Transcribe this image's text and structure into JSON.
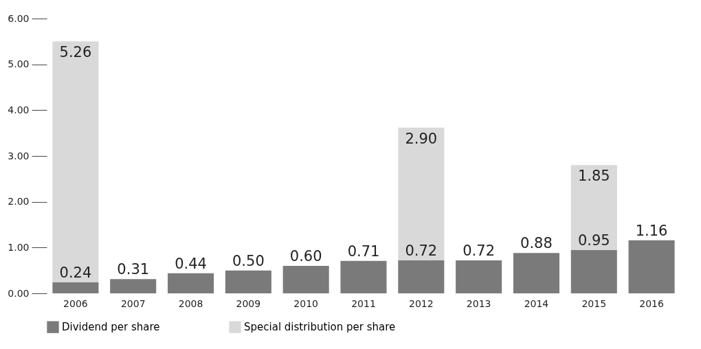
{
  "chart_data": {
    "type": "bar",
    "stacked": true,
    "categories": [
      "2006",
      "2007",
      "2008",
      "2009",
      "2010",
      "2011",
      "2012",
      "2013",
      "2014",
      "2015",
      "2016"
    ],
    "series": [
      {
        "name": "Dividend per share",
        "color": "#7a7a7a",
        "values": [
          0.24,
          0.31,
          0.44,
          0.5,
          0.6,
          0.71,
          0.72,
          0.72,
          0.88,
          0.95,
          1.16
        ],
        "value_labels": [
          "0.24",
          "0.31",
          "0.44",
          "0.50",
          "0.60",
          "0.71",
          "0.72",
          "0.72",
          "0.88",
          "0.95",
          "1.16"
        ]
      },
      {
        "name": "Special distribution per share",
        "color": "#d9d9d9",
        "values": [
          5.26,
          null,
          null,
          null,
          null,
          null,
          2.9,
          null,
          null,
          1.85,
          null
        ],
        "value_labels": [
          "5.26",
          null,
          null,
          null,
          null,
          null,
          "2.90",
          null,
          null,
          "1.85",
          null
        ]
      }
    ],
    "ylim": [
      0,
      6
    ],
    "yticks": [
      {
        "value": 0,
        "label": "0.00"
      },
      {
        "value": 1,
        "label": "1.00"
      },
      {
        "value": 2,
        "label": "2.00"
      },
      {
        "value": 3,
        "label": "3.00"
      },
      {
        "value": 4,
        "label": "4.00"
      },
      {
        "value": 5,
        "label": "5.00"
      },
      {
        "value": 6,
        "label": "6.00"
      }
    ],
    "grid": false,
    "legend": "bottom"
  }
}
